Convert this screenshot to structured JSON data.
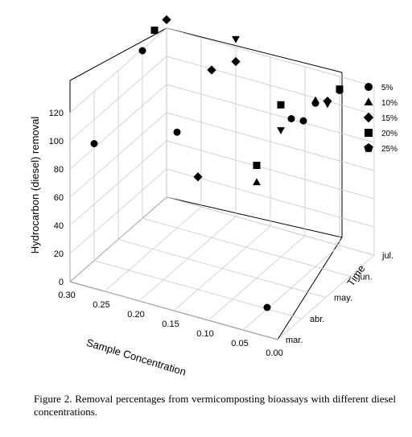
{
  "chart_data": {
    "type": "scatter",
    "projection": "3d",
    "zlabel": "Hydrocarbon (diesel) removal",
    "xlabel": "Sample Concentration",
    "ylabel": "Time",
    "z_ticks": [
      "0",
      "20",
      "40",
      "60",
      "80",
      "100",
      "120"
    ],
    "x_ticks": [
      "0.30",
      "0.25",
      "0.20",
      "0.15",
      "0.10",
      "0.05",
      "0.00"
    ],
    "time_ticks": [
      "mar.",
      "abr.",
      "may.",
      "jun.",
      "jul."
    ],
    "legend_position": "right",
    "series": [
      {
        "name": "5%",
        "marker": "circle",
        "points": [
          [
            0.05,
            1,
            1
          ],
          [
            0.05,
            2,
            120
          ],
          [
            0.05,
            2.5,
            111
          ],
          [
            0.05,
            3,
            116
          ],
          [
            0.05,
            4,
            110
          ],
          [
            0.3,
            1,
            83
          ],
          [
            0.25,
            3,
            68
          ],
          [
            0.3,
            3,
            119
          ]
        ]
      },
      {
        "name": "10%",
        "marker": "triangle-up",
        "points": [
          [
            0.1,
            2,
            68
          ],
          [
            0.05,
            3,
            118
          ]
        ]
      },
      {
        "name": "15%",
        "marker": "diamond",
        "points": [
          [
            0.15,
            1,
            80
          ],
          [
            0.2,
            3,
            119
          ],
          [
            0.05,
            3.5,
            110
          ],
          [
            0.3,
            4,
            126
          ],
          [
            0.2,
            4,
            110
          ]
        ]
      },
      {
        "name": "20%",
        "marker": "square",
        "points": [
          [
            0.1,
            2,
            80
          ],
          [
            0.1,
            3,
            108
          ],
          [
            0.05,
            4,
            111
          ],
          [
            0.3,
            3.5,
            126
          ]
        ]
      },
      {
        "name": "25%",
        "marker": "pentagon",
        "points": []
      },
      {
        "name": "",
        "marker": "triangle-down",
        "points": [
          [
            0.1,
            3,
            90
          ],
          [
            0.05,
            3.5,
            108
          ],
          [
            0.2,
            4,
            126
          ]
        ]
      }
    ]
  },
  "caption": "Figure 2. Removal percentages from vermicomposting bioassays with different diesel concentrations."
}
